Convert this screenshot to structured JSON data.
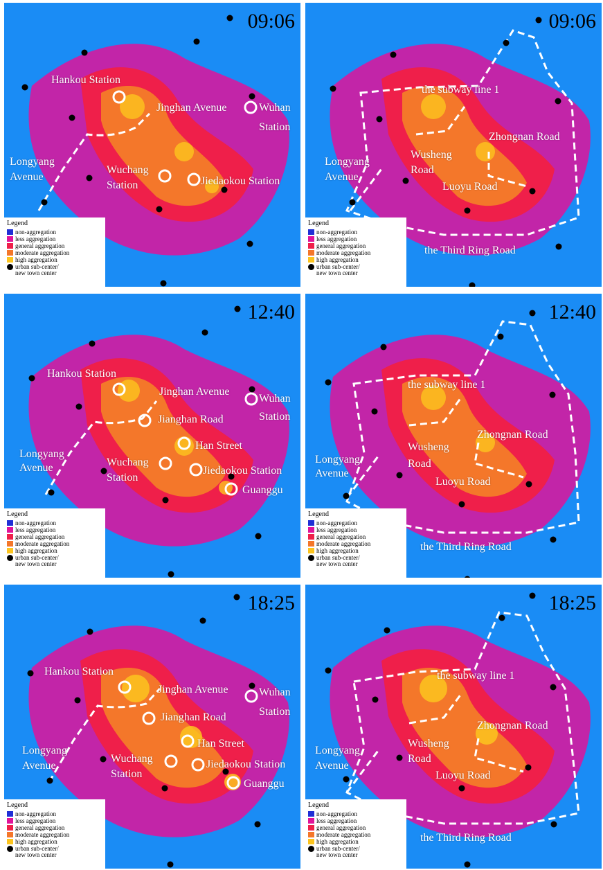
{
  "colors": {
    "background": "#1a8cf5",
    "non_aggregation": "#1f2fd6",
    "less_aggregation": "#e0139a",
    "general_aggregation": "#ef1f4a",
    "moderate_aggregation": "#f4772a",
    "high_aggregation": "#fcc41e",
    "marker": "#000000",
    "annotation": "#ffffff"
  },
  "legend": {
    "title": "Legend",
    "items": [
      {
        "label": "non-aggregation",
        "color": "#1f2fd6"
      },
      {
        "label": "less aggregation",
        "color": "#e0139a"
      },
      {
        "label": "general aggregation",
        "color": "#ef1f4a"
      },
      {
        "label": "moderate aggregation",
        "color": "#f4772a"
      },
      {
        "label": "high aggregation",
        "color": "#fcc41e"
      }
    ],
    "marker_label_line1": "urban sub-center/",
    "marker_label_line2": "new town center"
  },
  "panels": [
    {
      "time": "09:06",
      "legend_title": "Legend",
      "labels": [
        "Hankou Station",
        "Jinghan Avenue",
        "Wuhan",
        "Station",
        "Longyang",
        "Avenue",
        "Wuchang",
        "Station",
        "Jiedaokou Station"
      ]
    },
    {
      "time": "09:06",
      "legend_title": "Legend",
      "labels": [
        "the subway line 1",
        "Zhongnan Road",
        "Longyang",
        "Avenue",
        "Wusheng",
        "Road",
        "Luoyu Road",
        "the Third Ring Road"
      ]
    },
    {
      "time": "12:40",
      "legend_title": "Legend",
      "labels": [
        "Hankou Station",
        "Jinghan Avenue",
        "Wuhan",
        "Station",
        "Jianghan Road",
        "Han Street",
        "Longyang",
        "Avenue",
        "Wuchang",
        "Station",
        "Jiedaokou Station",
        "Guanggu"
      ]
    },
    {
      "time": "12:40",
      "legend_title": "Legend",
      "labels": [
        "the subway line 1",
        "Zhongnan Road",
        "Longyang",
        "Avenue",
        "Wusheng",
        "Road",
        "Luoyu Road",
        "the Third Ring Road"
      ]
    },
    {
      "time": "18:25",
      "legend_title": "Legend",
      "labels": [
        "Hankou Station",
        "Jinghan Avenue",
        "Wuhan",
        "Station",
        "Jianghan Road",
        "Han Street",
        "Longyang",
        "Avenue",
        "Wuchang",
        "Station",
        "Jiedaokou Station",
        "Guanggu"
      ]
    },
    {
      "time": "18:25",
      "legend_title": "Legend",
      "labels": [
        "the subway line 1",
        "Zhongnan Road",
        "Longyang",
        "Avenue",
        "Wusheng",
        "Road",
        "Luoyu Road",
        "the Third Ring Road"
      ]
    }
  ]
}
